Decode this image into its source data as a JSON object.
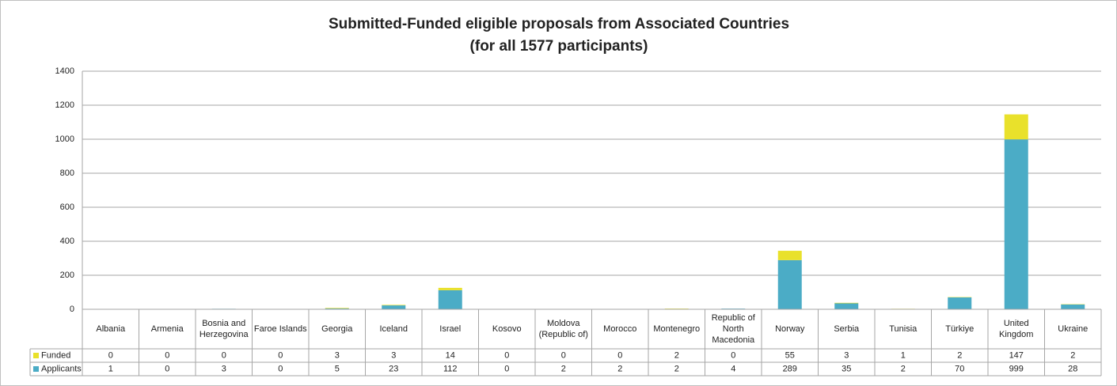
{
  "chart_data": {
    "type": "stacked_bar",
    "title": "Submitted-Funded eligible proposals from Associated Countries",
    "subtitle": "(for all 1577 participants)",
    "categories": [
      "Albania",
      "Armenia",
      "Bosnia and Herzegovina",
      "Faroe Islands",
      "Georgia",
      "Iceland",
      "Israel",
      "Kosovo",
      "Moldova (Republic of)",
      "Morocco",
      "Montenegro",
      "Republic of North Macedonia",
      "Norway",
      "Serbia",
      "Tunisia",
      "Türkiye",
      "United Kingdom",
      "Ukraine"
    ],
    "series": [
      {
        "name": "Funded",
        "color": "#e9e12b",
        "values": [
          0,
          0,
          0,
          0,
          3,
          3,
          14,
          0,
          0,
          0,
          2,
          0,
          55,
          3,
          1,
          2,
          147,
          2
        ]
      },
      {
        "name": "Applicants",
        "color": "#4bacc6",
        "values": [
          1,
          0,
          3,
          0,
          5,
          23,
          112,
          0,
          2,
          2,
          2,
          4,
          289,
          35,
          2,
          70,
          999,
          28
        ]
      }
    ],
    "stack_order": [
      1,
      0
    ],
    "ylim": [
      0,
      1400
    ],
    "yticks": [
      0,
      200,
      400,
      600,
      800,
      1000,
      1200,
      1400
    ],
    "grid": true
  }
}
